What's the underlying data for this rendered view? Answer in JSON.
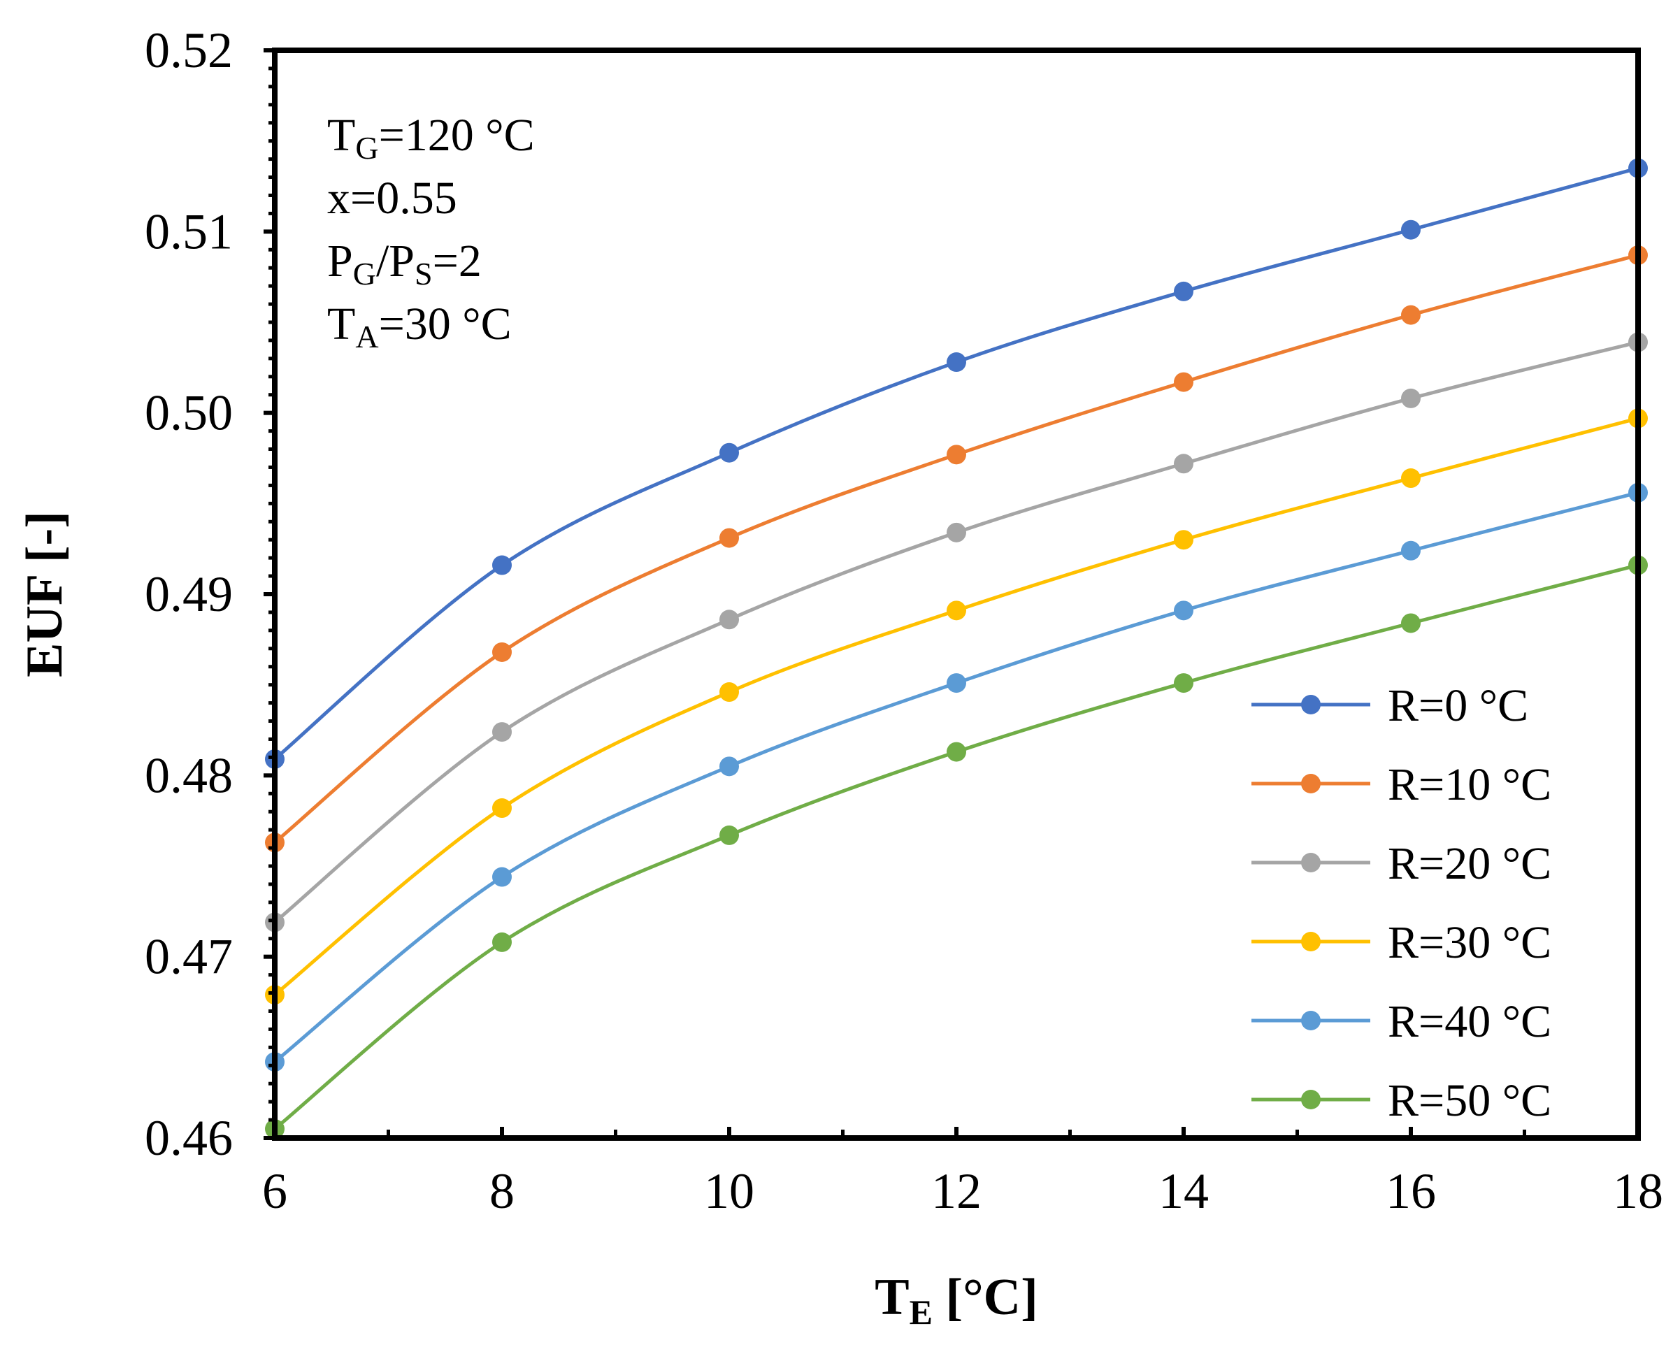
{
  "chart_data": {
    "type": "line",
    "title": "",
    "xlabel": {
      "main": "T",
      "sub": "E",
      "rest": " [°C]"
    },
    "ylabel": "EUF [-]",
    "xlim": [
      6,
      18
    ],
    "ylim": [
      0.46,
      0.52
    ],
    "xticks": [
      6,
      8,
      10,
      12,
      14,
      16,
      18
    ],
    "yticks": [
      0.46,
      0.47,
      0.48,
      0.49,
      0.5,
      0.51,
      0.52
    ],
    "ytick_labels": [
      "0.46",
      "0.47",
      "0.48",
      "0.49",
      "0.50",
      "0.51",
      "0.52"
    ],
    "grid": false,
    "legend_position": "bottom-right",
    "annotations": [
      {
        "main": "T",
        "sub": "G",
        "rest": "=120 °C"
      },
      {
        "main": "x=0.55",
        "sub": "",
        "rest": ""
      },
      {
        "main": "P",
        "sub": "G",
        "rest": "/P",
        "sub2": "S",
        "rest2": "=2"
      },
      {
        "main": "T",
        "sub": "A",
        "rest": "=30 °C"
      }
    ],
    "x": [
      6,
      8,
      10,
      12,
      14,
      16,
      18
    ],
    "series": [
      {
        "name": "R=0 °C",
        "color": "#4472C4",
        "values": [
          0.4809,
          0.4916,
          0.4978,
          0.5028,
          0.5067,
          0.5101,
          0.5135
        ]
      },
      {
        "name": "R=10 °C",
        "color": "#ED7D31",
        "values": [
          0.4763,
          0.4868,
          0.4931,
          0.4977,
          0.5017,
          0.5054,
          0.5087
        ]
      },
      {
        "name": "R=20 °C",
        "color": "#A5A5A5",
        "values": [
          0.4719,
          0.4824,
          0.4886,
          0.4934,
          0.4972,
          0.5008,
          0.5039
        ]
      },
      {
        "name": "R=30 °C",
        "color": "#FFC000",
        "values": [
          0.4679,
          0.4782,
          0.4846,
          0.4891,
          0.493,
          0.4964,
          0.4997
        ]
      },
      {
        "name": "R=40 °C",
        "color": "#5B9BD5",
        "values": [
          0.4642,
          0.4744,
          0.4805,
          0.4851,
          0.4891,
          0.4924,
          0.4956
        ]
      },
      {
        "name": "R=50 °C",
        "color": "#70AD47",
        "values": [
          0.4605,
          0.4708,
          0.4767,
          0.4813,
          0.4851,
          0.4884,
          0.4916
        ]
      }
    ]
  }
}
